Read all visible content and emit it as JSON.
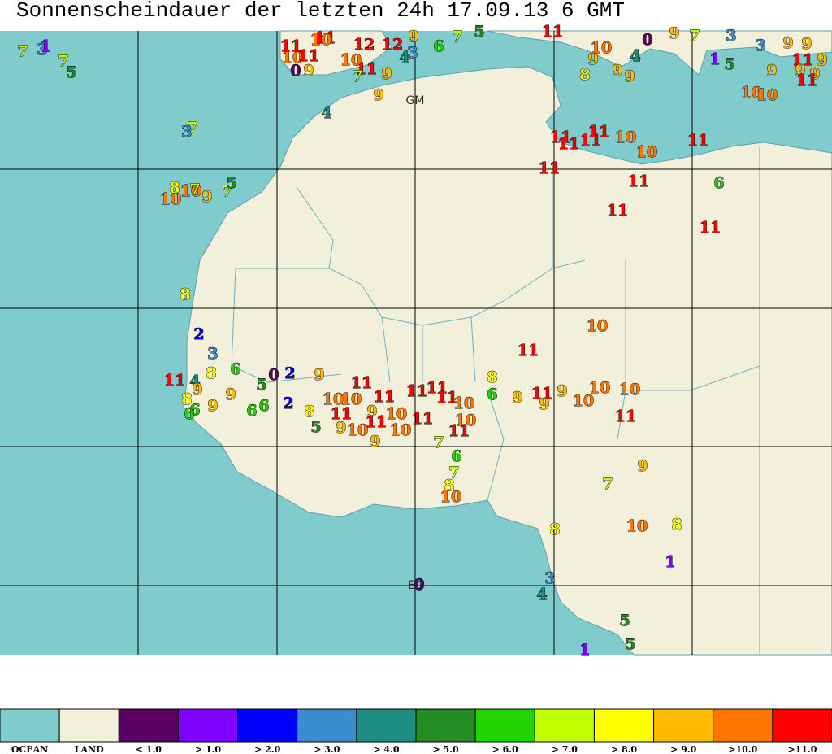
{
  "title": "Sonnenscheindauer der letzten 24h  17.09.13 6  GMT",
  "map_labels": [
    "GM",
    "E0"
  ],
  "stations": [
    7,
    3,
    1,
    7,
    5,
    3,
    7,
    8,
    10,
    10,
    7,
    9,
    7,
    5,
    8,
    2,
    3,
    11,
    4,
    9,
    8,
    6,
    8,
    6,
    6,
    9,
    9,
    6,
    6,
    5,
    0,
    2,
    9,
    2,
    8,
    5,
    10,
    10,
    11,
    9,
    10,
    11,
    9,
    11,
    11,
    10,
    10,
    9,
    11,
    11,
    11,
    10,
    11,
    10,
    11,
    7,
    6,
    7,
    8,
    10,
    8,
    6,
    9,
    11,
    9,
    9,
    10,
    10,
    10,
    11,
    11,
    10,
    9,
    7,
    10,
    8,
    8,
    1,
    3,
    4,
    5,
    5,
    1,
    4,
    9,
    6,
    4,
    3,
    9,
    12,
    12,
    11,
    7,
    10,
    9,
    9,
    0,
    10,
    11,
    11,
    11,
    10,
    7,
    5,
    11,
    10,
    9,
    8,
    9,
    9,
    4,
    0,
    9,
    7,
    3,
    1,
    5,
    3,
    9,
    9,
    11,
    9,
    9,
    9,
    9,
    11,
    10,
    10,
    11,
    11,
    11,
    11,
    10,
    10,
    11,
    11,
    11,
    11,
    6,
    11,
    0
  ],
  "legend": [
    {
      "label": "OCEAN",
      "color": "#80cccc"
    },
    {
      "label": "LAND",
      "color": "#f2f0da"
    },
    {
      "label": "< 1.0",
      "color": "#5a0064"
    },
    {
      "label": "> 1.0",
      "color": "#8000ff"
    },
    {
      "label": "> 2.0",
      "color": "#0000ff"
    },
    {
      "label": "> 3.0",
      "color": "#3c8cd2"
    },
    {
      "label": "> 4.0",
      "color": "#1e8c80"
    },
    {
      "label": "> 5.0",
      "color": "#238c23"
    },
    {
      "label": "> 6.0",
      "color": "#23d200"
    },
    {
      "label": "> 7.0",
      "color": "#c0ff00"
    },
    {
      "label": "> 8.0",
      "color": "#ffff00"
    },
    {
      "label": "> 9.0",
      "color": "#ffbb00"
    },
    {
      "label": ">10.0",
      "color": "#ff7700"
    },
    {
      "label": ">11.0",
      "color": "#ff0000"
    }
  ]
}
